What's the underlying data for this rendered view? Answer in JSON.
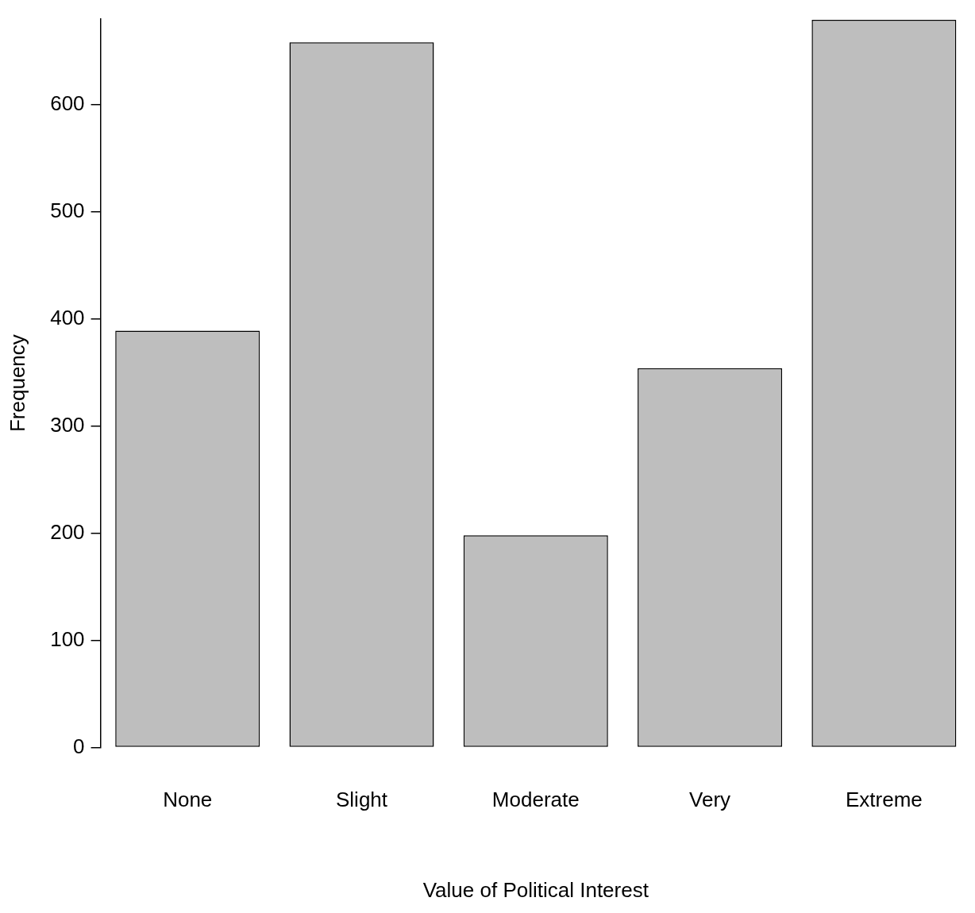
{
  "chart_data": {
    "type": "bar",
    "xlabel": "Value of Political Interest",
    "ylabel": "Frequency",
    "categories": [
      "None",
      "Slight",
      "Moderate",
      "Very",
      "Extreme"
    ],
    "values": [
      389,
      658,
      198,
      354,
      679
    ],
    "color": "#bebebe",
    "ylim": [
      0,
      680
    ],
    "yticks": [
      0,
      100,
      200,
      300,
      400,
      500,
      600
    ],
    "grid": false
  }
}
